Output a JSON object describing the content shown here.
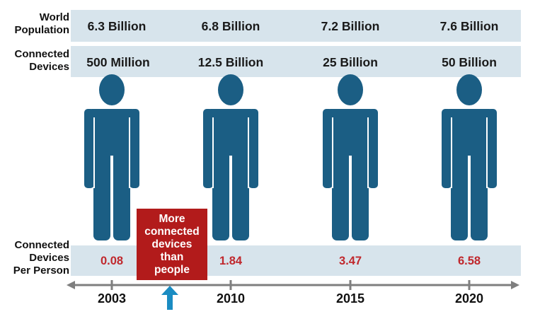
{
  "row_labels": {
    "world_population": [
      "World",
      "Population"
    ],
    "connected_devices": [
      "Connected",
      "Devices"
    ],
    "devices_per_person": [
      "Connected",
      "Devices",
      "Per Person"
    ]
  },
  "columns": [
    {
      "year": "2003",
      "population": "6.3 Billion",
      "devices": "500 Million",
      "per_person": "0.08"
    },
    {
      "year": "2010",
      "population": "6.8 Billion",
      "devices": "12.5 Billion",
      "per_person": "1.84"
    },
    {
      "year": "2015",
      "population": "7.2 Billion",
      "devices": "25 Billion",
      "per_person": "3.47"
    },
    {
      "year": "2020",
      "population": "7.6 Billion",
      "devices": "50 Billion",
      "per_person": "6.58"
    }
  ],
  "callout": {
    "lines": [
      "More",
      "connected",
      "devices",
      "than",
      "people"
    ]
  },
  "icons": {
    "person": "person-icon",
    "arrow_up": "arrow-up-icon",
    "timeline": "timeline-arrow"
  },
  "colors": {
    "band": "#d7e4ec",
    "person": "#1b5e84",
    "ratio_text": "#c0282d",
    "callout_bg": "#b21b1b",
    "arrow_up": "#1a8cc2",
    "timeline": "#7f7f7f"
  }
}
